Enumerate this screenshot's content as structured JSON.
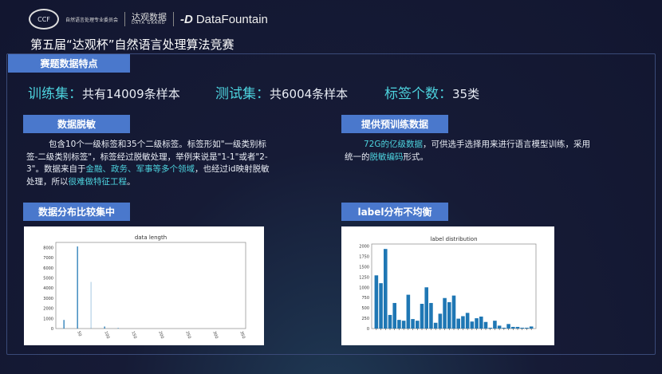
{
  "header": {
    "emblem_text": "CCF",
    "org": "自然语言处理专业委员会",
    "brand1": "达观数据",
    "brand1_sub": "DATA GRAND",
    "brand2": "DataFountain",
    "brand2_mark": "-D"
  },
  "title": "第五届“达观杯”自然语言处理算法竞赛",
  "section": "赛题数据特点",
  "stats": [
    {
      "label": "训练集：",
      "value": "共有14009条样本"
    },
    {
      "label": "测试集：",
      "value": "共6004条样本"
    },
    {
      "label": "标签个数：",
      "value": "35类"
    }
  ],
  "blocks": {
    "desensitize": {
      "title": "数据脱敏",
      "p1": "包含10个一级标签和35个二级标签。标签形如\"一级类别标签-二级类别标签\"，标签经过脱敏处理，举例来说是\"1-1\"或者\"2-3\"。数据来自于",
      "h1": "金融、政务、军事等多个领域",
      "p2": "，也经过id映射脱敏处理，所以",
      "h2": "很难做特征工程",
      "p3": "。"
    },
    "pretrain": {
      "title": "提供预训练数据",
      "h1": "72G的亿级数据",
      "p1": "，可供选手选择用来进行语言模型训练，采用统一的",
      "h2": "脱敏编码",
      "p2": "形式。"
    },
    "dist": {
      "title": "数据分布比较集中"
    },
    "label": {
      "title": "label分布不均衡"
    }
  },
  "chart_data": [
    {
      "type": "bar",
      "title": "data length",
      "xlim": [
        10,
        360
      ],
      "ylim": [
        0,
        8500
      ],
      "xticks": [
        "50",
        "100",
        "150",
        "200",
        "250",
        "300",
        "350"
      ],
      "yticks": [
        "0",
        "1000",
        "2000",
        "3000",
        "4000",
        "5000",
        "6000",
        "7000",
        "8000"
      ],
      "x": [
        25,
        50,
        75,
        100,
        125
      ],
      "values": [
        850,
        8100,
        4600,
        200,
        50
      ],
      "color": "#1f77b4"
    },
    {
      "type": "bar",
      "title": "label distribution",
      "ylim": [
        0,
        2050
      ],
      "yticks": [
        "0",
        "250",
        "500",
        "750",
        "1000",
        "1250",
        "1500",
        "1750",
        "2000"
      ],
      "values": [
        1290,
        1100,
        1930,
        330,
        620,
        210,
        190,
        820,
        230,
        190,
        600,
        1000,
        620,
        140,
        360,
        740,
        640,
        800,
        240,
        300,
        380,
        170,
        250,
        290,
        160,
        20,
        190,
        70,
        20,
        110,
        40,
        40,
        20,
        20,
        50
      ],
      "color": "#1f77b4"
    }
  ]
}
